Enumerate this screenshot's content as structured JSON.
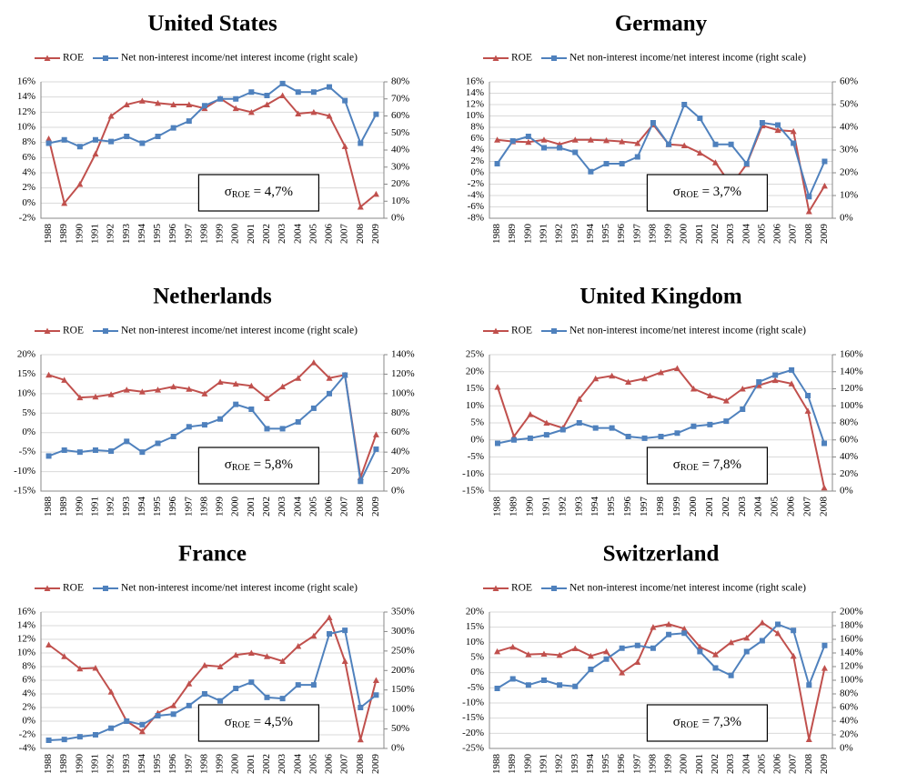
{
  "chart_data": [
    {
      "type": "line",
      "title": "United States",
      "categories": [
        "1988",
        "1989",
        "1990",
        "1991",
        "1992",
        "1993",
        "1994",
        "1995",
        "1996",
        "1997",
        "1998",
        "1999",
        "2000",
        "2001",
        "2002",
        "2003",
        "2004",
        "2005",
        "2006",
        "2007",
        "2008",
        "2009"
      ],
      "series": [
        {
          "name": "ROE",
          "color": "#c0504d",
          "marker": "triangle",
          "values": [
            8.5,
            0,
            2.5,
            6.5,
            11.5,
            13,
            13.5,
            13.2,
            13,
            13,
            12.5,
            13.8,
            12.5,
            12,
            13,
            14.2,
            11.8,
            12,
            11.5,
            7.5,
            -0.5,
            1.2
          ]
        },
        {
          "name": "Net non-interest income/net interest income (right scale)",
          "color": "#4f81bd",
          "marker": "square",
          "axis": "y2",
          "values": [
            44,
            46,
            42,
            46,
            45,
            48,
            44,
            48,
            53,
            57,
            66,
            70,
            70,
            74,
            72,
            79,
            74,
            74,
            77,
            69,
            44,
            61
          ]
        }
      ],
      "ylim": [
        -2,
        16
      ],
      "yticks": [
        {
          "value": -2,
          "label": "-2%"
        },
        {
          "value": 0,
          "label": "0%"
        },
        {
          "value": 2,
          "label": "2%"
        },
        {
          "value": 4,
          "label": "4%"
        },
        {
          "value": 6,
          "label": "6%"
        },
        {
          "value": 8,
          "label": "8%"
        },
        {
          "value": 10,
          "label": "10%"
        },
        {
          "value": 12,
          "label": "12%"
        },
        {
          "value": 14,
          "label": "14%"
        },
        {
          "value": 16,
          "label": "16%"
        }
      ],
      "y2lim": [
        0,
        80
      ],
      "y2ticks": [
        {
          "value": 0,
          "label": "0%"
        },
        {
          "value": 10,
          "label": "10%"
        },
        {
          "value": 20,
          "label": "20%"
        },
        {
          "value": 30,
          "label": "30%"
        },
        {
          "value": 40,
          "label": "40%"
        },
        {
          "value": 50,
          "label": "50%"
        },
        {
          "value": 60,
          "label": "60%"
        },
        {
          "value": 70,
          "label": "70%"
        },
        {
          "value": 80,
          "label": "80%"
        }
      ],
      "grid": true,
      "annotation": {
        "symbol": "σ",
        "subscript": "ROE",
        "text": " = 4,7%"
      }
    },
    {
      "type": "line",
      "title": "Germany",
      "categories": [
        "1988",
        "1989",
        "1990",
        "1991",
        "1992",
        "1993",
        "1994",
        "1995",
        "1996",
        "1997",
        "1998",
        "1999",
        "2000",
        "2001",
        "2002",
        "2003",
        "2004",
        "2005",
        "2006",
        "2007",
        "2008",
        "2009"
      ],
      "series": [
        {
          "name": "ROE",
          "color": "#c0504d",
          "marker": "triangle",
          "values": [
            5.8,
            5.5,
            5.4,
            5.8,
            5,
            5.8,
            5.8,
            5.7,
            5.5,
            5.2,
            8.5,
            5,
            4.8,
            3.5,
            1.8,
            -2.2,
            1.5,
            8.3,
            7.5,
            7.3,
            -6.8,
            -2.3
          ]
        },
        {
          "name": "Net non-interest income/net interest income (right scale)",
          "color": "#4f81bd",
          "marker": "square",
          "axis": "y2",
          "values": [
            24,
            34,
            36,
            31,
            31,
            29,
            20.5,
            24,
            24,
            27,
            42,
            32.5,
            50,
            44,
            32.5,
            32.5,
            24,
            42,
            41,
            33,
            9.5,
            25
          ]
        }
      ],
      "ylim": [
        -8,
        16
      ],
      "yticks": [
        {
          "value": -8,
          "label": "-8%"
        },
        {
          "value": -6,
          "label": "-6%"
        },
        {
          "value": -4,
          "label": "-4%"
        },
        {
          "value": -2,
          "label": "-2%"
        },
        {
          "value": 0,
          "label": "0%"
        },
        {
          "value": 2,
          "label": "2%"
        },
        {
          "value": 4,
          "label": "4%"
        },
        {
          "value": 6,
          "label": "6%"
        },
        {
          "value": 8,
          "label": "8%"
        },
        {
          "value": 10,
          "label": "10%"
        },
        {
          "value": 12,
          "label": "12%"
        },
        {
          "value": 14,
          "label": "14%"
        },
        {
          "value": 16,
          "label": "16%"
        }
      ],
      "y2lim": [
        0,
        60
      ],
      "y2ticks": [
        {
          "value": 0,
          "label": "0%"
        },
        {
          "value": 10,
          "label": "10%"
        },
        {
          "value": 20,
          "label": "20%"
        },
        {
          "value": 30,
          "label": "30%"
        },
        {
          "value": 40,
          "label": "40%"
        },
        {
          "value": 50,
          "label": "50%"
        },
        {
          "value": 60,
          "label": "60%"
        }
      ],
      "grid": true,
      "annotation": {
        "symbol": "σ",
        "subscript": "ROE",
        "text": " = 3,7%"
      }
    },
    {
      "type": "line",
      "title": "Netherlands",
      "categories": [
        "1988",
        "1989",
        "1990",
        "1991",
        "1992",
        "1993",
        "1994",
        "1995",
        "1996",
        "1997",
        "1998",
        "1999",
        "2000",
        "2001",
        "2002",
        "2003",
        "2004",
        "2005",
        "2006",
        "2007",
        "2008",
        "2009"
      ],
      "series": [
        {
          "name": "ROE",
          "color": "#c0504d",
          "marker": "triangle",
          "values": [
            14.8,
            13.5,
            9,
            9.2,
            9.8,
            11,
            10.5,
            11,
            11.8,
            11.2,
            10,
            13,
            12.5,
            12,
            8.8,
            11.8,
            14,
            18,
            14,
            14.8,
            -11.5,
            -0.5
          ]
        },
        {
          "name": "Net non-interest income/net interest income (right scale)",
          "color": "#4f81bd",
          "marker": "square",
          "axis": "y2",
          "values": [
            36,
            42,
            40,
            42,
            41,
            51,
            40,
            49,
            56,
            66,
            68,
            74,
            89,
            84,
            64,
            64,
            71,
            85,
            100,
            119,
            10,
            43
          ]
        }
      ],
      "ylim": [
        -15,
        20
      ],
      "yticks": [
        {
          "value": -15,
          "label": "-15%"
        },
        {
          "value": -10,
          "label": "-10%"
        },
        {
          "value": -5,
          "label": "-5%"
        },
        {
          "value": 0,
          "label": "0%"
        },
        {
          "value": 5,
          "label": "5%"
        },
        {
          "value": 10,
          "label": "10%"
        },
        {
          "value": 15,
          "label": "15%"
        },
        {
          "value": 20,
          "label": "20%"
        }
      ],
      "y2lim": [
        0,
        140
      ],
      "y2ticks": [
        {
          "value": 0,
          "label": "0%"
        },
        {
          "value": 20,
          "label": "20%"
        },
        {
          "value": 40,
          "label": "40%"
        },
        {
          "value": 60,
          "label": "60%"
        },
        {
          "value": 80,
          "label": "80%"
        },
        {
          "value": 100,
          "label": "100%"
        },
        {
          "value": 120,
          "label": "120%"
        },
        {
          "value": 140,
          "label": "140%"
        }
      ],
      "grid": true,
      "annotation": {
        "symbol": "σ",
        "subscript": "ROE",
        "text": " = 5,8%"
      }
    },
    {
      "type": "line",
      "title": "United Kingdom",
      "categories": [
        "1988",
        "1989",
        "1990",
        "1991",
        "1992",
        "1993",
        "1994",
        "1995",
        "1996",
        "1997",
        "1998",
        "1999",
        "2000",
        "2001",
        "2002",
        "2003",
        "2004",
        "2005",
        "2006",
        "2007",
        "2008"
      ],
      "series": [
        {
          "name": "ROE",
          "color": "#c0504d",
          "marker": "triangle",
          "values": [
            15.5,
            1,
            7.5,
            5,
            3.5,
            12,
            18,
            18.8,
            17,
            18,
            19.8,
            21,
            15,
            13,
            11.5,
            15,
            16,
            17.5,
            16.5,
            8.5,
            -14
          ]
        },
        {
          "name": "Net non-interest income/net interest income (right scale)",
          "color": "#4f81bd",
          "marker": "square",
          "axis": "y2",
          "values": [
            56,
            60,
            62,
            66,
            72,
            80,
            74,
            74,
            64,
            62,
            64,
            68,
            76,
            78,
            82,
            96,
            128,
            136,
            142,
            112,
            56
          ]
        }
      ],
      "ylim": [
        -15,
        25
      ],
      "yticks": [
        {
          "value": -15,
          "label": "-15%"
        },
        {
          "value": -10,
          "label": "-10%"
        },
        {
          "value": -5,
          "label": "-5%"
        },
        {
          "value": 0,
          "label": "0%"
        },
        {
          "value": 5,
          "label": "5%"
        },
        {
          "value": 10,
          "label": "10%"
        },
        {
          "value": 15,
          "label": "15%"
        },
        {
          "value": 20,
          "label": "20%"
        },
        {
          "value": 25,
          "label": "25%"
        }
      ],
      "y2lim": [
        0,
        160
      ],
      "y2ticks": [
        {
          "value": 0,
          "label": "0%"
        },
        {
          "value": 20,
          "label": "20%"
        },
        {
          "value": 40,
          "label": "40%"
        },
        {
          "value": 60,
          "label": "60%"
        },
        {
          "value": 80,
          "label": "80%"
        },
        {
          "value": 100,
          "label": "100%"
        },
        {
          "value": 120,
          "label": "120%"
        },
        {
          "value": 140,
          "label": "140%"
        },
        {
          "value": 160,
          "label": "160%"
        }
      ],
      "grid": true,
      "annotation": {
        "symbol": "σ",
        "subscript": "ROE",
        "text": " = 7,8%"
      }
    },
    {
      "type": "line",
      "title": "France",
      "categories": [
        "1988",
        "1989",
        "1990",
        "1991",
        "1992",
        "1993",
        "1994",
        "1995",
        "1996",
        "1997",
        "1998",
        "1999",
        "2000",
        "2001",
        "2002",
        "2003",
        "2004",
        "2005",
        "2006",
        "2007",
        "2008",
        "2009"
      ],
      "series": [
        {
          "name": "ROE",
          "color": "#c0504d",
          "marker": "triangle",
          "values": [
            11.2,
            9.5,
            7.7,
            7.8,
            4.3,
            0,
            -1.5,
            1.2,
            2.3,
            5.5,
            8.2,
            8,
            9.7,
            10,
            9.5,
            8.8,
            11,
            12.5,
            15.2,
            8.8,
            -2.7,
            6
          ]
        },
        {
          "name": "Net non-interest income/net interest income (right scale)",
          "color": "#4f81bd",
          "marker": "square",
          "axis": "y2",
          "values": [
            21,
            23,
            30,
            35,
            52,
            70,
            61,
            84,
            88,
            110,
            140,
            122,
            154,
            170,
            131,
            128,
            163,
            163,
            294,
            303,
            105,
            137
          ]
        }
      ],
      "ylim": [
        -4,
        16
      ],
      "yticks": [
        {
          "value": -4,
          "label": "-4%"
        },
        {
          "value": -2,
          "label": "-2%"
        },
        {
          "value": 0,
          "label": "0%"
        },
        {
          "value": 2,
          "label": "2%"
        },
        {
          "value": 4,
          "label": "4%"
        },
        {
          "value": 6,
          "label": "6%"
        },
        {
          "value": 8,
          "label": "8%"
        },
        {
          "value": 10,
          "label": "10%"
        },
        {
          "value": 12,
          "label": "12%"
        },
        {
          "value": 14,
          "label": "14%"
        },
        {
          "value": 16,
          "label": "16%"
        }
      ],
      "y2lim": [
        0,
        350
      ],
      "y2ticks": [
        {
          "value": 0,
          "label": "0%"
        },
        {
          "value": 50,
          "label": "50%"
        },
        {
          "value": 100,
          "label": "100%"
        },
        {
          "value": 150,
          "label": "150%"
        },
        {
          "value": 200,
          "label": "200%"
        },
        {
          "value": 250,
          "label": "250%"
        },
        {
          "value": 300,
          "label": "300%"
        },
        {
          "value": 350,
          "label": "350%"
        }
      ],
      "grid": true,
      "annotation": {
        "symbol": "σ",
        "subscript": "ROE",
        "text": " = 4,5%"
      }
    },
    {
      "type": "line",
      "title": "Switzerland",
      "categories": [
        "1988",
        "1989",
        "1990",
        "1991",
        "1992",
        "1993",
        "1994",
        "1995",
        "1996",
        "1997",
        "1998",
        "1999",
        "2000",
        "2001",
        "2002",
        "2003",
        "2004",
        "2005",
        "2006",
        "2007",
        "2008",
        "2009"
      ],
      "series": [
        {
          "name": "ROE",
          "color": "#c0504d",
          "marker": "triangle",
          "values": [
            7,
            8.5,
            6,
            6.2,
            5.8,
            8,
            5.5,
            7,
            0,
            3.5,
            15,
            16,
            14.5,
            8.5,
            6,
            10,
            11.5,
            16.5,
            13,
            5.5,
            -22,
            1.5
          ]
        },
        {
          "name": "Net non-interest income/net interest income (right scale)",
          "color": "#4f81bd",
          "marker": "square",
          "axis": "y2",
          "values": [
            88,
            102,
            93,
            100,
            93,
            91,
            116,
            131,
            147,
            151,
            147,
            167,
            169,
            142,
            118,
            107,
            142,
            158,
            182,
            173,
            93,
            151
          ]
        }
      ],
      "ylim": [
        -25,
        20
      ],
      "yticks": [
        {
          "value": -25,
          "label": "-25%"
        },
        {
          "value": -20,
          "label": "-20%"
        },
        {
          "value": -15,
          "label": "-15%"
        },
        {
          "value": -10,
          "label": "-10%"
        },
        {
          "value": -5,
          "label": "-5%"
        },
        {
          "value": 0,
          "label": "0%"
        },
        {
          "value": 5,
          "label": "5%"
        },
        {
          "value": 10,
          "label": "10%"
        },
        {
          "value": 15,
          "label": "15%"
        },
        {
          "value": 20,
          "label": "20%"
        }
      ],
      "y2lim": [
        0,
        200
      ],
      "y2ticks": [
        {
          "value": 0,
          "label": "0%"
        },
        {
          "value": 20,
          "label": "20%"
        },
        {
          "value": 40,
          "label": "40%"
        },
        {
          "value": 60,
          "label": "60%"
        },
        {
          "value": 80,
          "label": "80%"
        },
        {
          "value": 100,
          "label": "100%"
        },
        {
          "value": 120,
          "label": "120%"
        },
        {
          "value": 140,
          "label": "140%"
        },
        {
          "value": 160,
          "label": "160%"
        },
        {
          "value": 180,
          "label": "180%"
        },
        {
          "value": 200,
          "label": "200%"
        }
      ],
      "grid": true,
      "annotation": {
        "symbol": "σ",
        "subscript": "ROE",
        "text": " = 7,3%"
      }
    }
  ]
}
